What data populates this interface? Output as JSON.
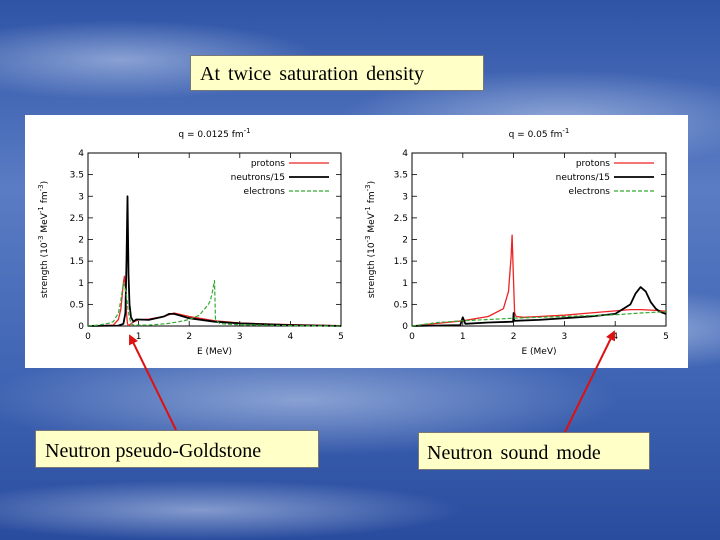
{
  "slide": {
    "title": "At  twice  saturation  density",
    "caption_left": "Neutron pseudo-Goldstone",
    "caption_right": "Neutron  sound  mode"
  },
  "colors": {
    "caption_bg": "#ffffc8",
    "arrow": "#dd1111",
    "protons": "#ee2222",
    "neutrons": "#000000",
    "electrons": "#33aa33"
  },
  "chart_data": [
    {
      "type": "line",
      "title": "q = 0.0125 fm",
      "title_sup": "-1",
      "xlabel": "E (MeV)",
      "ylabel": "strength (10",
      "ylabel_sup": "-3",
      "ylabel_tail": " MeV",
      "ylabel_sup2": "-1",
      "ylabel_tail2": " fm",
      "ylabel_sup3": "-3",
      "ylabel_end": ")",
      "xlim": [
        0,
        5
      ],
      "ylim": [
        0,
        4
      ],
      "xticks": [
        "0",
        "1",
        "2",
        "3",
        "4",
        "5"
      ],
      "yticks": [
        "0",
        "0.5",
        "1",
        "1.5",
        "2",
        "2.5",
        "3",
        "3.5",
        "4"
      ],
      "legend_position": "top-right",
      "grid": false,
      "series": [
        {
          "name": "protons",
          "color": "#ee2222",
          "dash": "",
          "width": 1.3,
          "x": [
            0.0,
            0.5,
            0.6,
            0.65,
            0.7,
            0.72,
            0.74,
            0.76,
            0.78,
            0.8,
            0.85,
            0.9,
            1.0,
            1.2,
            1.5,
            1.7,
            2.0,
            2.5,
            3.0,
            4.0,
            5.0
          ],
          "y": [
            0.0,
            0.02,
            0.15,
            0.4,
            1.0,
            1.15,
            0.9,
            0.3,
            0.05,
            0.01,
            0.05,
            0.1,
            0.14,
            0.16,
            0.22,
            0.3,
            0.22,
            0.12,
            0.07,
            0.03,
            0.01
          ]
        },
        {
          "name": "neutrons/15",
          "color": "#000000",
          "dash": "",
          "width": 1.8,
          "x": [
            0.0,
            0.6,
            0.7,
            0.74,
            0.76,
            0.78,
            0.8,
            0.82,
            0.85,
            0.9,
            0.95,
            1.0,
            1.2,
            1.5,
            1.6,
            1.7,
            1.8,
            2.0,
            2.5,
            3.0,
            4.0,
            5.0
          ],
          "y": [
            0.0,
            0.01,
            0.05,
            0.3,
            1.5,
            3.0,
            1.2,
            0.5,
            0.2,
            0.1,
            0.15,
            0.15,
            0.14,
            0.22,
            0.28,
            0.28,
            0.25,
            0.18,
            0.1,
            0.06,
            0.02,
            0.0
          ]
        },
        {
          "name": "electrons",
          "color": "#33aa33",
          "dash": "4,2",
          "width": 1.2,
          "x": [
            0.0,
            0.2,
            0.4,
            0.5,
            0.6,
            0.65,
            0.7,
            0.75,
            0.8,
            0.85,
            0.9,
            1.0,
            1.2,
            1.4,
            1.6,
            1.8,
            2.0,
            2.2,
            2.38,
            2.42,
            2.46,
            2.5,
            2.52,
            2.6,
            2.8,
            3.0,
            4.0,
            5.0
          ],
          "y": [
            0.0,
            0.02,
            0.06,
            0.1,
            0.3,
            0.6,
            1.0,
            0.8,
            0.3,
            0.05,
            0.02,
            0.02,
            0.02,
            0.04,
            0.06,
            0.1,
            0.15,
            0.25,
            0.5,
            0.6,
            0.8,
            1.05,
            0.15,
            0.06,
            0.04,
            0.03,
            0.01,
            0.0
          ]
        }
      ]
    },
    {
      "type": "line",
      "title": "q = 0.05 fm",
      "title_sup": "-1",
      "xlabel": "E (MeV)",
      "ylabel": "strength (10",
      "ylabel_sup": "-3",
      "ylabel_tail": " MeV",
      "ylabel_sup2": "-1",
      "ylabel_tail2": " fm",
      "ylabel_sup3": "-3",
      "ylabel_end": ")",
      "xlim": [
        0,
        5
      ],
      "ylim": [
        0,
        4
      ],
      "xticks": [
        "0",
        "1",
        "2",
        "3",
        "4",
        "5"
      ],
      "yticks": [
        "0",
        "0.5",
        "1",
        "1.5",
        "2",
        "2.5",
        "3",
        "3.5",
        "4"
      ],
      "legend_position": "top-right",
      "grid": false,
      "series": [
        {
          "name": "protons",
          "color": "#ee2222",
          "dash": "",
          "width": 1.3,
          "x": [
            0.0,
            0.5,
            1.0,
            1.5,
            1.8,
            1.9,
            1.95,
            1.97,
            2.0,
            2.02,
            2.05,
            2.2,
            2.5,
            3.0,
            3.5,
            4.0,
            4.3,
            4.5,
            4.8,
            5.0
          ],
          "y": [
            0.0,
            0.06,
            0.12,
            0.22,
            0.4,
            0.8,
            1.6,
            2.1,
            1.0,
            0.3,
            0.22,
            0.2,
            0.22,
            0.25,
            0.3,
            0.35,
            0.38,
            0.38,
            0.36,
            0.34
          ]
        },
        {
          "name": "neutrons/15",
          "color": "#000000",
          "dash": "",
          "width": 1.8,
          "x": [
            0.0,
            0.95,
            1.0,
            1.05,
            1.5,
            1.99,
            2.0,
            2.01,
            2.5,
            3.0,
            3.5,
            4.0,
            4.3,
            4.4,
            4.5,
            4.6,
            4.7,
            4.8,
            4.9,
            5.0
          ],
          "y": [
            0.0,
            0.02,
            0.2,
            0.05,
            0.08,
            0.1,
            0.3,
            0.12,
            0.14,
            0.18,
            0.22,
            0.28,
            0.5,
            0.75,
            0.9,
            0.8,
            0.55,
            0.4,
            0.32,
            0.28
          ]
        },
        {
          "name": "electrons",
          "color": "#33aa33",
          "dash": "4,2",
          "width": 1.2,
          "x": [
            0.0,
            0.5,
            1.0,
            1.5,
            2.0,
            2.5,
            3.0,
            3.5,
            4.0,
            4.5,
            5.0
          ],
          "y": [
            0.0,
            0.08,
            0.12,
            0.15,
            0.18,
            0.2,
            0.22,
            0.24,
            0.26,
            0.3,
            0.33
          ]
        }
      ]
    }
  ]
}
